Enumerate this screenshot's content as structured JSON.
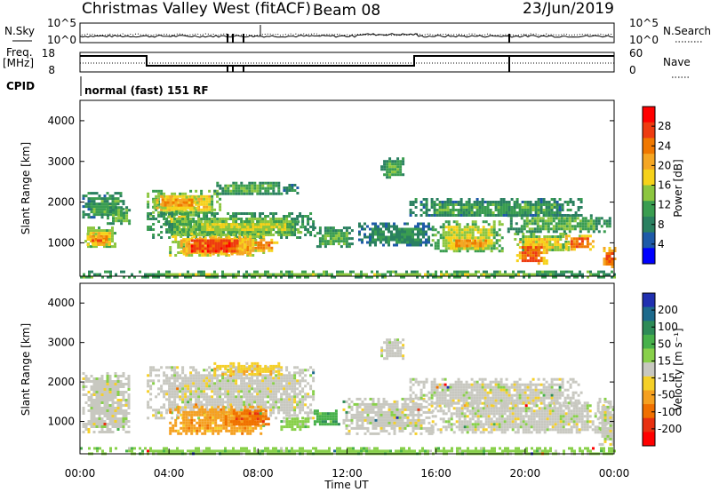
{
  "header": {
    "title": "Christmas Valley West (fitACF)",
    "beam": "Beam 08",
    "date": "23/Jun/2019"
  },
  "top_panel": {
    "nsky_label": "N.Sky",
    "nsearch_label": "N.Search",
    "left_ticks": [
      "10^5",
      "10^0"
    ],
    "right_ticks": [
      "10^5",
      "10^0"
    ]
  },
  "freq_panel": {
    "freq_label": "Freq.",
    "unit_label": "[MHz]",
    "nave_label": "Nave",
    "left_ticks": [
      "18",
      "8"
    ],
    "right_ticks": [
      "60",
      "0"
    ]
  },
  "cpid": {
    "label": "CPID",
    "value": "normal (fast) 151 RF"
  },
  "chart_data": [
    {
      "type": "heatmap",
      "name": "power",
      "ylabel": "Slant Range [km]",
      "xlim": [
        0,
        24
      ],
      "ylim": [
        180,
        4500
      ],
      "yticks": [
        "1000",
        "2000",
        "3000",
        "4000"
      ],
      "colorbar": {
        "label": "Power [dB]",
        "ticks": [
          "4",
          "8",
          "12",
          "16",
          "20",
          "24",
          "28"
        ],
        "range": [
          0,
          32
        ],
        "colors": [
          "#0000ff",
          "#1e5aa8",
          "#2a8060",
          "#3a9d50",
          "#8cc63f",
          "#f6d21a",
          "#f5a623",
          "#f07800",
          "#ee3b10",
          "#ff0000"
        ]
      },
      "regions": [
        {
          "t0": 0.1,
          "t1": 2.0,
          "r0": 1600,
          "r1": 2250,
          "v": 11
        },
        {
          "t0": 0.2,
          "t1": 1.6,
          "r0": 900,
          "r1": 1400,
          "v": 18
        },
        {
          "t0": 0.3,
          "t1": 1.3,
          "r0": 950,
          "r1": 1250,
          "v": 23
        },
        {
          "t0": 0.4,
          "t1": 1.0,
          "r0": 1000,
          "r1": 1150,
          "v": 26
        },
        {
          "t0": 1.2,
          "t1": 2.2,
          "r0": 1500,
          "r1": 1900,
          "v": 12
        },
        {
          "t0": 3.0,
          "t1": 6.3,
          "r0": 1700,
          "r1": 2300,
          "v": 18
        },
        {
          "t0": 3.3,
          "t1": 5.3,
          "r0": 1850,
          "r1": 2150,
          "v": 23
        },
        {
          "t0": 3.8,
          "t1": 4.8,
          "r0": 1300,
          "r1": 1800,
          "v": 17
        },
        {
          "t0": 3.0,
          "t1": 10.5,
          "r0": 1100,
          "r1": 1750,
          "v": 13
        },
        {
          "t0": 4.6,
          "t1": 10.0,
          "r0": 1250,
          "r1": 1550,
          "v": 16
        },
        {
          "t0": 4.0,
          "t1": 8.3,
          "r0": 700,
          "r1": 1250,
          "v": 20
        },
        {
          "t0": 4.5,
          "t1": 7.5,
          "r0": 750,
          "r1": 1150,
          "v": 27
        },
        {
          "t0": 7.6,
          "t1": 8.8,
          "r0": 800,
          "r1": 1100,
          "v": 24
        },
        {
          "t0": 6.0,
          "t1": 9.0,
          "r0": 2200,
          "r1": 2500,
          "v": 12
        },
        {
          "t0": 9.0,
          "t1": 9.8,
          "r0": 2250,
          "r1": 2450,
          "v": 10
        },
        {
          "t0": 10.5,
          "t1": 12.2,
          "r0": 900,
          "r1": 1400,
          "v": 12
        },
        {
          "t0": 12.5,
          "t1": 15.8,
          "r0": 950,
          "r1": 1500,
          "v": 9
        },
        {
          "t0": 13.5,
          "t1": 14.5,
          "r0": 2600,
          "r1": 3100,
          "v": 12
        },
        {
          "t0": 14.8,
          "t1": 22.5,
          "r0": 1650,
          "r1": 2100,
          "v": 11
        },
        {
          "t0": 15.8,
          "t1": 19.0,
          "r0": 800,
          "r1": 1550,
          "v": 16
        },
        {
          "t0": 16.5,
          "t1": 18.5,
          "r0": 850,
          "r1": 1150,
          "v": 22
        },
        {
          "t0": 19.2,
          "t1": 23.8,
          "r0": 1300,
          "r1": 1700,
          "v": 12
        },
        {
          "t0": 19.5,
          "t1": 22.0,
          "r0": 800,
          "r1": 1250,
          "v": 18
        },
        {
          "t0": 19.6,
          "t1": 21.0,
          "r0": 500,
          "r1": 1050,
          "v": 25
        },
        {
          "t0": 21.8,
          "t1": 23.0,
          "r0": 850,
          "r1": 1200,
          "v": 24
        },
        {
          "t0": 23.5,
          "t1": 24.0,
          "r0": 400,
          "r1": 900,
          "v": 26
        },
        {
          "t0": 0.0,
          "t1": 24.0,
          "r0": 180,
          "r1": 320,
          "v": 14
        }
      ]
    },
    {
      "type": "heatmap",
      "name": "velocity",
      "ylabel": "Slant Range [km]",
      "xlabel": "Time UT",
      "xlim": [
        0,
        24
      ],
      "ylim": [
        180,
        4500
      ],
      "xticks": [
        "00:00",
        "04:00",
        "08:00",
        "12:00",
        "16:00",
        "20:00",
        "00:00"
      ],
      "yticks": [
        "1000",
        "2000",
        "3000",
        "4000"
      ],
      "colorbar": {
        "label": "Velocity [m s⁻¹]",
        "ticks": [
          "200",
          "100",
          "50",
          "15",
          "-15",
          "-50",
          "-100",
          "-200"
        ],
        "colors": [
          "#2030b0",
          "#1d6a8c",
          "#2e8b57",
          "#47b14a",
          "#88d04a",
          "#c8c8c0",
          "#f5d028",
          "#f5a020",
          "#f07000",
          "#e83010",
          "#ff0000"
        ]
      },
      "regions": [
        {
          "t0": 0.1,
          "t1": 2.2,
          "r0": 700,
          "r1": 2250,
          "c": 5
        },
        {
          "t0": 3.0,
          "t1": 10.5,
          "r0": 1100,
          "r1": 2400,
          "c": 5
        },
        {
          "t0": 4.0,
          "t1": 8.3,
          "r0": 700,
          "r1": 1400,
          "c": 7
        },
        {
          "t0": 6.5,
          "t1": 8.5,
          "r0": 900,
          "r1": 1300,
          "c": 8
        },
        {
          "t0": 9.0,
          "t1": 10.3,
          "r0": 800,
          "r1": 1100,
          "c": 4
        },
        {
          "t0": 10.5,
          "t1": 11.6,
          "r0": 900,
          "r1": 1300,
          "c": 3
        },
        {
          "t0": 11.8,
          "t1": 15.8,
          "r0": 700,
          "r1": 1600,
          "c": 5
        },
        {
          "t0": 13.5,
          "t1": 14.5,
          "r0": 2600,
          "r1": 3100,
          "c": 5
        },
        {
          "t0": 14.8,
          "t1": 22.5,
          "r0": 1400,
          "r1": 2100,
          "c": 5
        },
        {
          "t0": 15.8,
          "t1": 23.8,
          "r0": 700,
          "r1": 1500,
          "c": 5
        },
        {
          "t0": 23.3,
          "t1": 24.0,
          "r0": 400,
          "r1": 1600,
          "c": 5
        },
        {
          "t0": 6.0,
          "t1": 9.0,
          "r0": 2200,
          "r1": 2500,
          "c": 6
        },
        {
          "t0": 0.0,
          "t1": 24.0,
          "r0": 180,
          "r1": 350,
          "c": 4
        }
      ]
    }
  ]
}
